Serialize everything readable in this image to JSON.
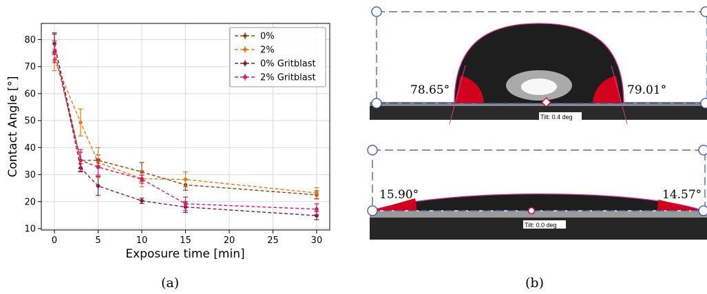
{
  "chart_data": {
    "type": "line",
    "title": "",
    "xlabel": "Exposure time [min]",
    "ylabel": "Contact Angle [°]",
    "xlim": [
      -1.5,
      31.5
    ],
    "ylim": [
      9.5,
      86
    ],
    "xticks": [
      0,
      5,
      10,
      15,
      20,
      25,
      30
    ],
    "yticks": [
      10,
      20,
      30,
      40,
      50,
      60,
      70,
      80
    ],
    "x": [
      0,
      3,
      5,
      10,
      15,
      30
    ],
    "grid": true,
    "legend_position": "top-right",
    "error_bars": true,
    "series": [
      {
        "name": "0%",
        "color": "#8B4513",
        "values": [
          78.5,
          35.3,
          35.3,
          31.0,
          26.2,
          22.5
        ],
        "errors": [
          3.5,
          3.0,
          2.0,
          3.5,
          2.0,
          1.5
        ]
      },
      {
        "name": "2%",
        "color": "#E07B1A",
        "values": [
          72.5,
          49.3,
          34.5,
          28.5,
          28.2,
          23.2
        ],
        "errors": [
          4.0,
          5.0,
          5.5,
          3.0,
          2.8,
          2.0
        ]
      },
      {
        "name": "0% Gritblast",
        "color": "#7A1F33",
        "values": [
          78.5,
          32.5,
          25.8,
          20.3,
          18.0,
          14.8
        ],
        "errors": [
          4.0,
          1.5,
          3.5,
          1.0,
          2.0,
          1.5
        ]
      },
      {
        "name": "2% Gritblast",
        "color": "#D81B60",
        "values": [
          75.5,
          35.3,
          32.8,
          28.3,
          19.2,
          17.2
        ],
        "errors": [
          4.0,
          4.0,
          3.0,
          1.5,
          2.5,
          2.0
        ]
      }
    ]
  },
  "panel_b": {
    "top_left_angle": "78.65°",
    "top_right_angle": "79.01°",
    "top_tilt": "Tilt: 0.4 deg",
    "bottom_left_angle": "15.90°",
    "bottom_right_angle": "14.57°",
    "bottom_tilt": "Tilt: 0.0 deg"
  },
  "captions": {
    "a": "(a)",
    "b": "(b)"
  }
}
